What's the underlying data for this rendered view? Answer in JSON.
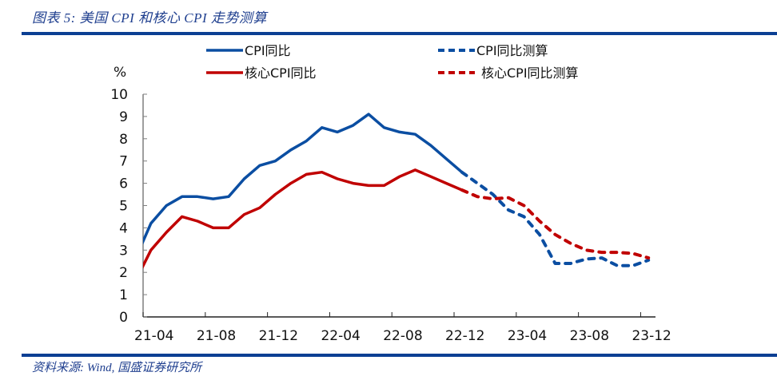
{
  "figure": {
    "title": "图表 5:  美国 CPI 和核心 CPI 走势测算",
    "source": "资料来源:  Wind,  国盛证券研究所"
  },
  "colors": {
    "cpi": "#0b4ea2",
    "core": "#c00000",
    "rule": "#0b3f93",
    "axis": "#7f7f7f"
  },
  "chart_data": {
    "type": "line",
    "title": "美国 CPI 和核心 CPI 走势测算",
    "ylabel": "%",
    "xlabel": "",
    "ylim": [
      0,
      10
    ],
    "yticks": [
      0,
      1,
      2,
      3,
      4,
      5,
      6,
      7,
      8,
      9,
      10
    ],
    "xtick_labels": [
      "21-04",
      "21-08",
      "21-12",
      "22-04",
      "22-08",
      "22-12",
      "23-04",
      "23-08",
      "23-12"
    ],
    "grid": false,
    "legend_position": "top",
    "x": [
      "21-03",
      "21-04",
      "21-05",
      "21-06",
      "21-07",
      "21-08",
      "21-09",
      "21-10",
      "21-11",
      "21-12",
      "22-01",
      "22-02",
      "22-03",
      "22-04",
      "22-05",
      "22-06",
      "22-07",
      "22-08",
      "22-09",
      "22-10",
      "22-11",
      "22-12",
      "23-01",
      "23-02",
      "23-03",
      "23-04",
      "23-05",
      "23-06",
      "23-07",
      "23-08",
      "23-09",
      "23-10",
      "23-11",
      "23-12"
    ],
    "series": [
      {
        "name": "CPI同比",
        "style": "solid",
        "color_key": "cpi",
        "start_index": 0,
        "values": [
          2.6,
          4.2,
          5.0,
          5.4,
          5.4,
          5.3,
          5.4,
          6.2,
          6.8,
          7.0,
          7.5,
          7.9,
          8.5,
          8.3,
          8.6,
          9.1,
          8.5,
          8.3,
          8.2,
          7.7,
          7.1,
          6.5
        ]
      },
      {
        "name": "核心CPI同比",
        "style": "solid",
        "color_key": "core",
        "start_index": 0,
        "values": [
          1.6,
          3.0,
          3.8,
          4.5,
          4.3,
          4.0,
          4.0,
          4.6,
          4.9,
          5.5,
          6.0,
          6.4,
          6.5,
          6.2,
          6.0,
          5.9,
          5.9,
          6.3,
          6.6,
          6.3,
          6.0,
          5.7
        ]
      },
      {
        "name": "CPI同比测算",
        "style": "dashed",
        "color_key": "cpi",
        "start_index": 21,
        "values": [
          6.5,
          6.0,
          5.5,
          4.8,
          4.5,
          3.7,
          2.4,
          2.4,
          2.6,
          2.65,
          2.3,
          2.3,
          2.55
        ]
      },
      {
        "name": "核心CPI同比测算",
        "style": "dashed",
        "color_key": "core",
        "start_index": 21,
        "values": [
          5.7,
          5.4,
          5.3,
          5.35,
          5.0,
          4.3,
          3.7,
          3.3,
          3.0,
          2.9,
          2.9,
          2.85,
          2.65
        ]
      }
    ]
  }
}
